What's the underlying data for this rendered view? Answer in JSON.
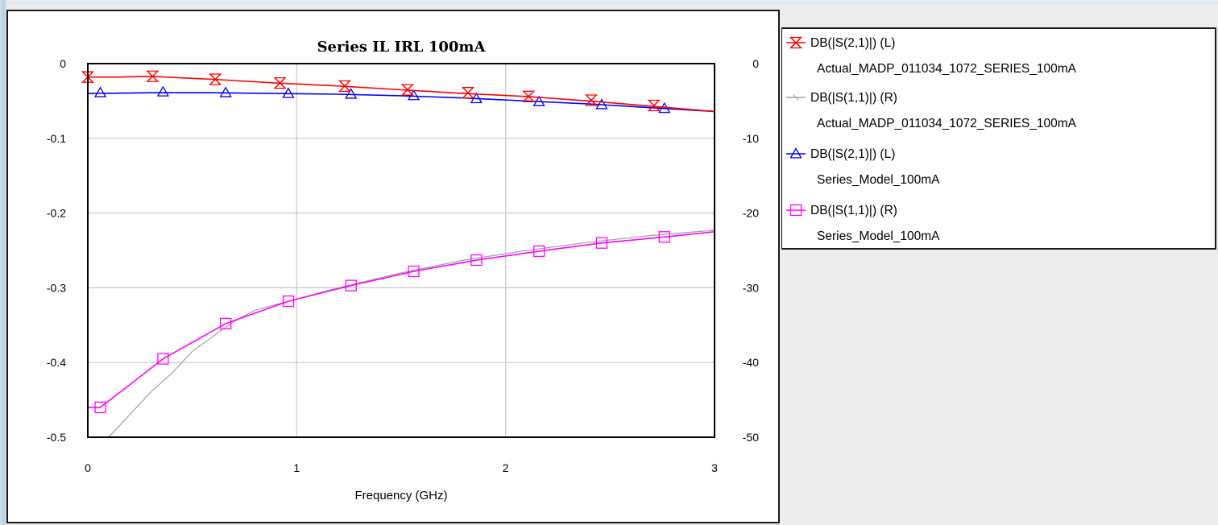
{
  "chart_data": {
    "type": "line",
    "title": "Series IL IRL 100mA",
    "xlabel": "Frequency (GHz)",
    "ylabel_left": "",
    "ylabel_right": "",
    "xlim": [
      0,
      3
    ],
    "ylim_left": [
      -0.5,
      0
    ],
    "ylim_right": [
      -50,
      0
    ],
    "x_ticks": [
      0,
      1,
      2,
      3
    ],
    "x_tick_labels": [
      "0",
      "1",
      "2",
      "3"
    ],
    "y_ticks_left": [
      0,
      -0.1,
      -0.2,
      -0.3,
      -0.4,
      -0.5
    ],
    "y_tick_labels_left": [
      "0",
      "-0.1",
      "-0.2",
      "-0.3",
      "-0.4",
      "-0.5"
    ],
    "y_ticks_right": [
      0,
      -10,
      -20,
      -30,
      -40,
      -50
    ],
    "y_tick_labels_right": [
      "0",
      "-10",
      "-20",
      "-30",
      "-40",
      "-50"
    ],
    "grid": true,
    "legend_position": "right",
    "series": [
      {
        "legend_line1": "DB(|S(2,1)|) (L)",
        "legend_line2": "Actual_MADP_011034_1072_SERIES_100mA",
        "axis": "left",
        "color": "#ff0000",
        "marker": "hourglass",
        "x": [
          0.0,
          0.15,
          0.3,
          0.6,
          0.9,
          1.2,
          1.5,
          1.8,
          2.1,
          2.4,
          2.7,
          3.0
        ],
        "y": [
          -0.018,
          -0.018,
          -0.017,
          -0.021,
          -0.026,
          -0.03,
          -0.035,
          -0.04,
          -0.044,
          -0.05,
          -0.057,
          -0.064
        ],
        "markers_x": [
          0.0,
          0.31,
          0.61,
          0.92,
          1.23,
          1.53,
          1.82,
          2.11,
          2.41,
          2.71
        ],
        "markers_y": [
          -0.018,
          -0.017,
          -0.021,
          -0.026,
          -0.03,
          -0.035,
          -0.039,
          -0.044,
          -0.049,
          -0.056
        ]
      },
      {
        "legend_line1": "DB(|S(1,1)|) (R)",
        "legend_line2": "Actual_MADP_011034_1072_SERIES_100mA",
        "axis": "right",
        "color": "#a0a0a0",
        "marker": "cross",
        "x": [
          0.1,
          0.2,
          0.3,
          0.4,
          0.5,
          0.6,
          0.7,
          0.8,
          1.0,
          1.2,
          1.5,
          1.8,
          2.1,
          2.4,
          2.7,
          3.0
        ],
        "y": [
          -50,
          -47,
          -44,
          -41.5,
          -38.5,
          -36.5,
          -34.5,
          -33,
          -31.5,
          -30,
          -28,
          -26.3,
          -25,
          -23.9,
          -23,
          -22.3
        ]
      },
      {
        "legend_line1": "DB(|S(2,1)|) (L)",
        "legend_line2": "Series_Model_100mA",
        "axis": "left",
        "color": "#0000ff",
        "marker": "triangle",
        "x": [
          0.0,
          0.3,
          0.6,
          0.9,
          1.2,
          1.5,
          1.8,
          2.1,
          2.4,
          2.7,
          3.0
        ],
        "y": [
          -0.04,
          -0.039,
          -0.039,
          -0.04,
          -0.041,
          -0.043,
          -0.046,
          -0.05,
          -0.054,
          -0.059,
          -0.064
        ],
        "markers_x": [
          0.06,
          0.36,
          0.66,
          0.96,
          1.26,
          1.56,
          1.86,
          2.16,
          2.46,
          2.76
        ],
        "markers_y": [
          -0.039,
          -0.038,
          -0.039,
          -0.04,
          -0.041,
          -0.043,
          -0.047,
          -0.051,
          -0.055,
          -0.06
        ]
      },
      {
        "legend_line1": "DB(|S(1,1)|) (R)",
        "legend_line2": "Series_Model_100mA",
        "axis": "right",
        "color": "#ff00ff",
        "marker": "square",
        "x": [
          0.0,
          0.06,
          0.2,
          0.36,
          0.66,
          0.96,
          1.26,
          1.56,
          1.86,
          2.16,
          2.46,
          2.76,
          3.0
        ],
        "y": [
          -46,
          -46,
          -43,
          -39.5,
          -34.8,
          -31.8,
          -29.7,
          -27.8,
          -26.3,
          -25.1,
          -24,
          -23.2,
          -22.5
        ],
        "markers_x": [
          0.06,
          0.36,
          0.66,
          0.96,
          1.26,
          1.56,
          1.86,
          2.16,
          2.46,
          2.76
        ],
        "markers_y": [
          -46,
          -39.5,
          -34.8,
          -31.8,
          -29.7,
          -27.8,
          -26.3,
          -25.1,
          -24,
          -23.2
        ]
      }
    ]
  }
}
